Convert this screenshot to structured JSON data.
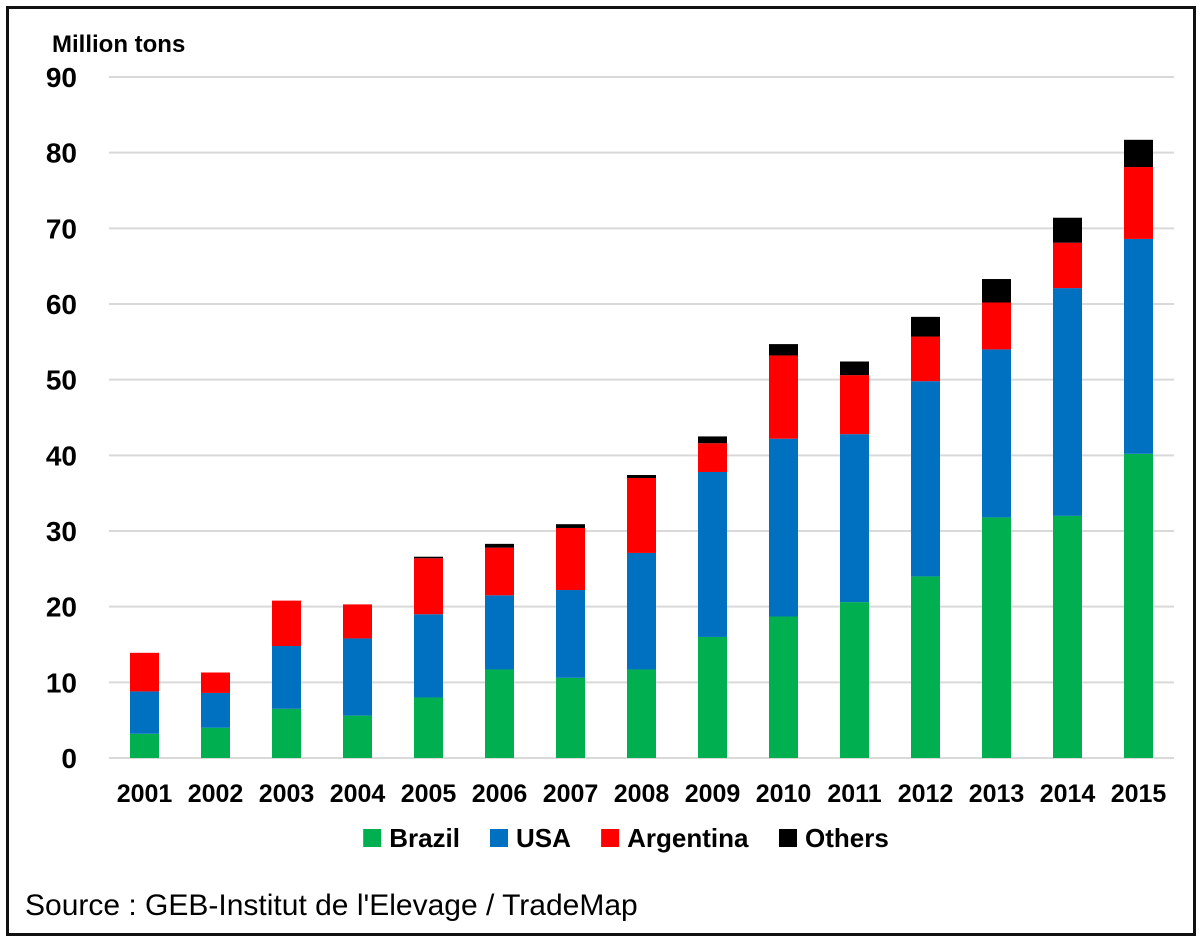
{
  "chart_data": {
    "type": "bar",
    "stacked": true,
    "ylabel": "Million tons",
    "ylim": [
      0,
      90
    ],
    "yticks": [
      0,
      10,
      20,
      30,
      40,
      50,
      60,
      70,
      80,
      90
    ],
    "grid": true,
    "legend_position": "bottom",
    "categories": [
      "2001",
      "2002",
      "2003",
      "2004",
      "2005",
      "2006",
      "2007",
      "2008",
      "2009",
      "2010",
      "2011",
      "2012",
      "2013",
      "2014",
      "2015"
    ],
    "series": [
      {
        "name": "Brazil",
        "color": "#00b050",
        "values": [
          3.2,
          4.0,
          6.5,
          5.6,
          8.0,
          11.7,
          10.6,
          11.7,
          16.0,
          18.7,
          20.6,
          24.0,
          31.8,
          32.0,
          40.2
        ]
      },
      {
        "name": "USA",
        "color": "#0070c0",
        "values": [
          5.6,
          4.6,
          8.3,
          10.2,
          11.0,
          9.8,
          11.6,
          15.4,
          21.8,
          23.5,
          22.2,
          25.8,
          22.2,
          30.1,
          28.4
        ]
      },
      {
        "name": "Argentina",
        "color": "#ff0000",
        "values": [
          5.1,
          2.7,
          6.0,
          4.5,
          7.4,
          6.3,
          8.2,
          9.9,
          3.8,
          11.0,
          7.8,
          5.9,
          6.2,
          6.0,
          9.5
        ]
      },
      {
        "name": "Others",
        "color": "#000000",
        "values": [
          0.0,
          0.0,
          0.0,
          0.0,
          0.2,
          0.5,
          0.5,
          0.4,
          0.9,
          1.5,
          1.8,
          2.6,
          3.1,
          3.3,
          3.6
        ]
      }
    ]
  },
  "source": "Source : GEB-Institut de l'Elevage / TradeMap"
}
